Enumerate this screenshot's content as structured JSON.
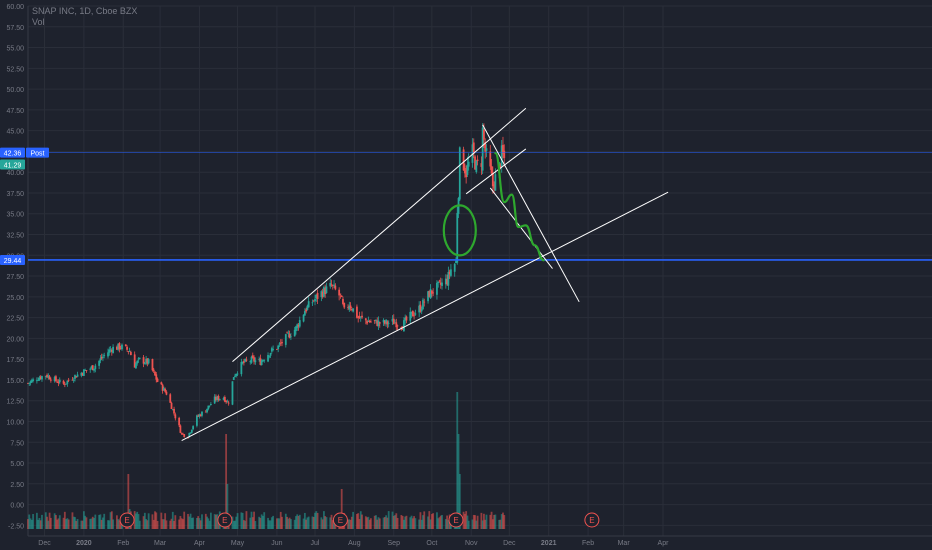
{
  "legend": {
    "symbol_line": "SNAP INC, 1D, Cboe BZX",
    "volume_label": "Vol"
  },
  "colors": {
    "background": "#1e222d",
    "grid": "#2a2e39",
    "axis_text": "#787b86",
    "up_candle": "#26a69a",
    "down_candle": "#ef5350",
    "drawing_line": "#ffffff",
    "horizontal_line": "#2962ff",
    "green_sketch": "#2ea82e",
    "earnings_marker": "#ef5350"
  },
  "chart_data": {
    "type": "candlestick",
    "title": "SNAP INC, 1D, Cboe BZX",
    "y_ticks": [
      "60.00",
      "57.50",
      "55.00",
      "52.50",
      "50.00",
      "47.50",
      "45.00",
      "42.50",
      "40.00",
      "37.50",
      "35.00",
      "32.50",
      "30.00",
      "27.50",
      "25.00",
      "22.50",
      "20.00",
      "17.50",
      "15.00",
      "12.50",
      "10.00",
      "7.50",
      "5.00",
      "2.50",
      "0.00",
      "-2.50"
    ],
    "ylim": [
      -3.0,
      60.0
    ],
    "x_ticks": [
      "Dec",
      "2020",
      "Feb",
      "Mar",
      "Apr",
      "May",
      "Jun",
      "Jul",
      "Aug",
      "Sep",
      "Oct",
      "Nov",
      "Dec",
      "2021",
      "Feb",
      "Mar",
      "Apr"
    ],
    "price_labels": [
      {
        "value": 42.36,
        "text": "42.36",
        "tag": "Post"
      },
      {
        "value": 41.29,
        "text": "41.29"
      },
      {
        "value": 29.44,
        "text": "29.44"
      }
    ],
    "horizontal_lines": [
      42.36,
      29.44
    ],
    "price_path": [
      [
        "2019-11-18",
        14.6
      ],
      [
        "2019-11-25",
        15.2
      ],
      [
        "2019-12-02",
        15.6
      ],
      [
        "2019-12-09",
        15.0
      ],
      [
        "2019-12-16",
        14.5
      ],
      [
        "2019-12-23",
        15.3
      ],
      [
        "2020-01-02",
        16.1
      ],
      [
        "2020-01-09",
        16.6
      ],
      [
        "2020-01-16",
        17.8
      ],
      [
        "2020-01-23",
        18.8
      ],
      [
        "2020-01-30",
        19.0
      ],
      [
        "2020-02-06",
        18.5
      ],
      [
        "2020-02-10",
        16.8
      ],
      [
        "2020-02-14",
        17.4
      ],
      [
        "2020-02-21",
        17.1
      ],
      [
        "2020-02-28",
        14.8
      ],
      [
        "2020-03-06",
        13.4
      ],
      [
        "2020-03-12",
        11.0
      ],
      [
        "2020-03-18",
        8.5
      ],
      [
        "2020-03-23",
        8.3
      ],
      [
        "2020-03-30",
        10.5
      ],
      [
        "2020-04-06",
        11.4
      ],
      [
        "2020-04-13",
        12.7
      ],
      [
        "2020-04-20",
        12.9
      ],
      [
        "2020-04-23",
        12.3
      ],
      [
        "2020-04-24",
        12.4
      ],
      [
        "2020-04-28",
        15.5
      ],
      [
        "2020-05-05",
        17.0
      ],
      [
        "2020-05-12",
        17.4
      ],
      [
        "2020-05-19",
        17.2
      ],
      [
        "2020-05-26",
        18.3
      ],
      [
        "2020-06-02",
        19.0
      ],
      [
        "2020-06-09",
        20.2
      ],
      [
        "2020-06-16",
        21.2
      ],
      [
        "2020-06-23",
        23.4
      ],
      [
        "2020-06-30",
        24.6
      ],
      [
        "2020-07-07",
        25.6
      ],
      [
        "2020-07-14",
        26.3
      ],
      [
        "2020-07-21",
        25.0
      ],
      [
        "2020-07-24",
        23.2
      ],
      [
        "2020-07-28",
        24.2
      ],
      [
        "2020-08-04",
        22.5
      ],
      [
        "2020-08-11",
        22.1
      ],
      [
        "2020-08-18",
        21.9
      ],
      [
        "2020-08-25",
        21.8
      ],
      [
        "2020-09-01",
        22.0
      ],
      [
        "2020-09-08",
        21.6
      ],
      [
        "2020-09-15",
        22.8
      ],
      [
        "2020-09-22",
        23.7
      ],
      [
        "2020-09-29",
        25.4
      ],
      [
        "2020-10-06",
        26.2
      ],
      [
        "2020-10-13",
        27.0
      ],
      [
        "2020-10-16",
        28.3
      ],
      [
        "2020-10-20",
        29.2
      ],
      [
        "2020-10-21",
        35.5
      ],
      [
        "2020-10-22",
        37.8
      ],
      [
        "2020-10-23",
        42.0
      ],
      [
        "2020-10-26",
        41.0
      ],
      [
        "2020-10-28",
        40.0
      ],
      [
        "2020-11-02",
        42.4
      ],
      [
        "2020-11-05",
        40.6
      ],
      [
        "2020-11-09",
        41.4
      ],
      [
        "2020-11-10",
        45.0
      ],
      [
        "2020-11-12",
        42.5
      ],
      [
        "2020-11-16",
        40.1
      ],
      [
        "2020-11-18",
        38.4
      ],
      [
        "2020-11-23",
        40.6
      ],
      [
        "2020-11-25",
        42.2
      ],
      [
        "2020-11-27",
        41.6
      ]
    ],
    "volume_scale": "volume shown as histogram at chart bottom",
    "earnings_markers": {
      "label": "E",
      "dates": [
        "2020-02-04",
        "2020-04-21",
        "2020-07-21",
        "2020-10-20",
        "2021-02-04"
      ]
    },
    "trendlines": [
      {
        "from": [
          "2020-03-18",
          7.7
        ],
        "to": [
          "2021-04-05",
          37.6
        ]
      },
      {
        "from": [
          "2020-04-27",
          17.2
        ],
        "to": [
          "2020-12-14",
          47.7
        ]
      },
      {
        "from": [
          "2020-10-28",
          37.4
        ],
        "to": [
          "2020-12-14",
          42.8
        ]
      },
      {
        "from": [
          "2020-11-10",
          45.7
        ],
        "to": [
          "2021-01-25",
          24.4
        ]
      },
      {
        "from": [
          "2020-11-16",
          38.1
        ],
        "to": [
          "2021-01-04",
          28.4
        ]
      }
    ],
    "green_sketch": {
      "circle_around": [
        "2020-10-23",
        33.0
      ],
      "projection": [
        [
          "2020-11-20",
          42.3
        ],
        [
          "2020-11-27",
          36.4
        ],
        [
          "2020-12-03",
          37.3
        ],
        [
          "2020-12-08",
          33.4
        ],
        [
          "2020-12-14",
          33.6
        ],
        [
          "2020-12-21",
          31.2
        ],
        [
          "2020-12-28",
          29.4
        ]
      ]
    }
  }
}
